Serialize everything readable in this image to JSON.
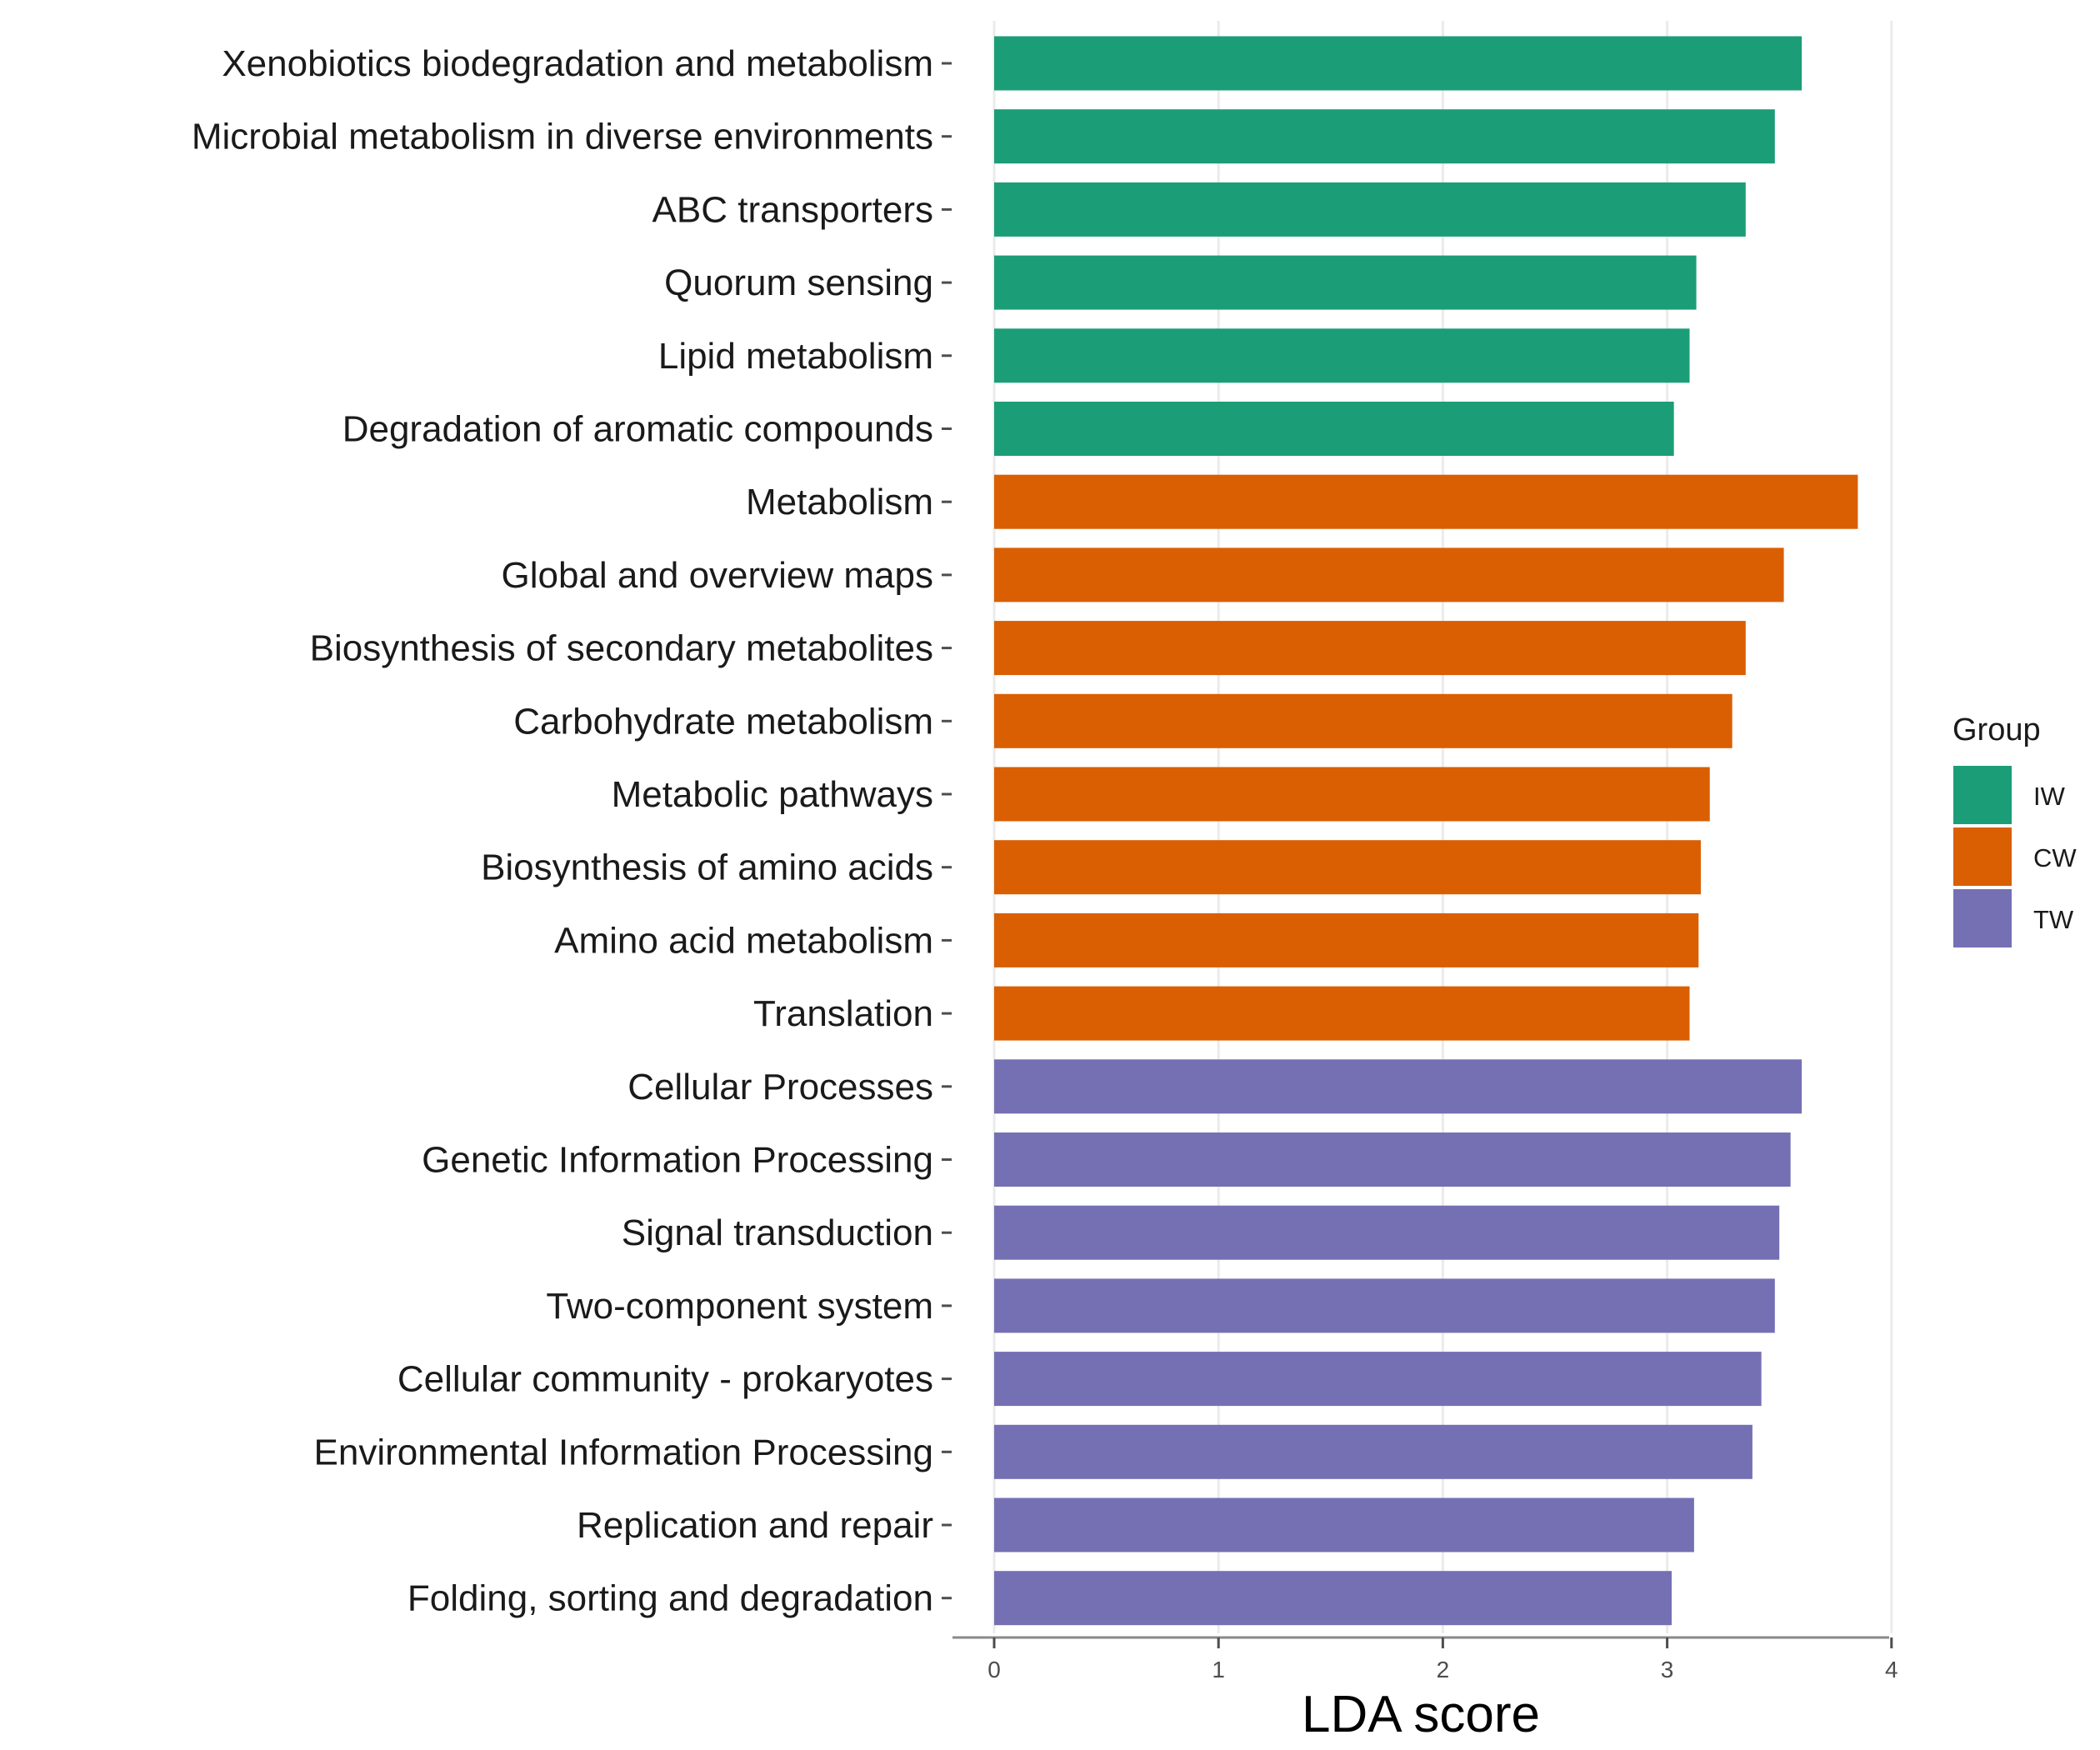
{
  "chart_data": {
    "type": "bar",
    "orientation": "horizontal",
    "xlabel": "LDA score",
    "xlim": [
      0,
      4
    ],
    "xticks": [
      "0",
      "1",
      "2",
      "3",
      "4"
    ],
    "grid": "vertical major gridlines",
    "legend": {
      "title": "Group",
      "placement": "right",
      "entries": [
        {
          "name": "IW",
          "color": "#1b9e77"
        },
        {
          "name": "CW",
          "color": "#d95f02"
        },
        {
          "name": "TW",
          "color": "#7570b3"
        }
      ]
    },
    "bars": [
      {
        "label": "Xenobiotics biodegradation and metabolism",
        "value": 3.6,
        "group": "IW"
      },
      {
        "label": "Microbial metabolism in diverse environments",
        "value": 3.48,
        "group": "IW"
      },
      {
        "label": "ABC transporters",
        "value": 3.35,
        "group": "IW"
      },
      {
        "label": "Quorum sensing",
        "value": 3.13,
        "group": "IW"
      },
      {
        "label": "Lipid metabolism",
        "value": 3.1,
        "group": "IW"
      },
      {
        "label": "Degradation of aromatic compounds",
        "value": 3.03,
        "group": "IW"
      },
      {
        "label": "Metabolism",
        "value": 3.85,
        "group": "CW"
      },
      {
        "label": "Global and overview maps",
        "value": 3.52,
        "group": "CW"
      },
      {
        "label": "Biosynthesis of secondary metabolites",
        "value": 3.35,
        "group": "CW"
      },
      {
        "label": "Carbohydrate metabolism",
        "value": 3.29,
        "group": "CW"
      },
      {
        "label": "Metabolic pathways",
        "value": 3.19,
        "group": "CW"
      },
      {
        "label": "Biosynthesis of amino acids",
        "value": 3.15,
        "group": "CW"
      },
      {
        "label": "Amino acid metabolism",
        "value": 3.14,
        "group": "CW"
      },
      {
        "label": "Translation",
        "value": 3.1,
        "group": "CW"
      },
      {
        "label": "Cellular Processes",
        "value": 3.6,
        "group": "TW"
      },
      {
        "label": "Genetic Information Processing",
        "value": 3.55,
        "group": "TW"
      },
      {
        "label": "Signal transduction",
        "value": 3.5,
        "group": "TW"
      },
      {
        "label": "Two-component system",
        "value": 3.48,
        "group": "TW"
      },
      {
        "label": "Cellular community - prokaryotes",
        "value": 3.42,
        "group": "TW"
      },
      {
        "label": "Environmental Information Processing",
        "value": 3.38,
        "group": "TW"
      },
      {
        "label": "Replication and repair",
        "value": 3.12,
        "group": "TW"
      },
      {
        "label": "Folding, sorting and degradation",
        "value": 3.02,
        "group": "TW"
      }
    ]
  }
}
